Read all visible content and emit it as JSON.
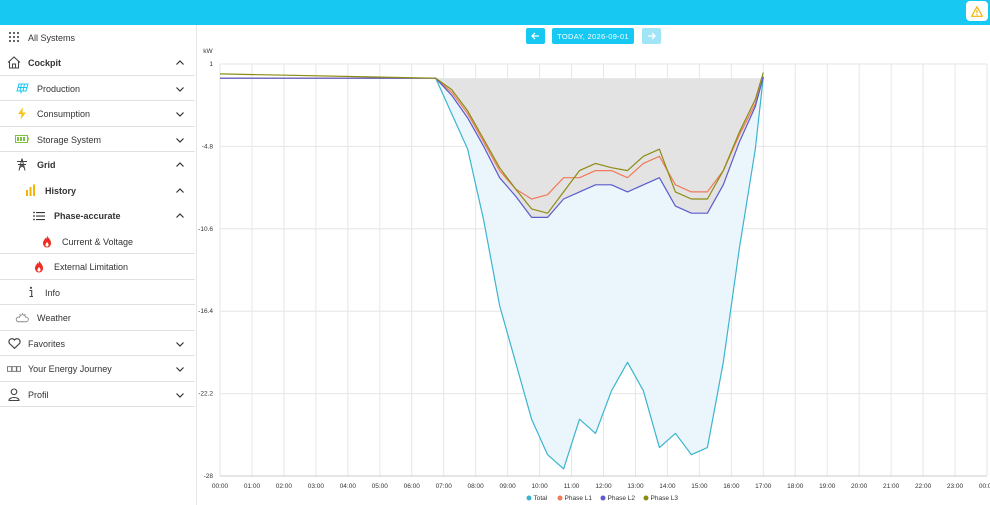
{
  "header": {
    "warning_icon": "warning-icon",
    "accent_color": "#17c8f3"
  },
  "date_nav": {
    "label": "TODAY, 2026-09-01",
    "prev_icon": "arrow-left-icon",
    "next_icon": "arrow-right-icon"
  },
  "sidebar": {
    "items": [
      {
        "label": "All Systems",
        "icon": "grid-icon",
        "bold": false,
        "chevron": ""
      },
      {
        "label": "Cockpit",
        "icon": "home-icon",
        "bold": true,
        "chevron": "up"
      },
      {
        "label": "Production",
        "icon": "solar-panel-icon",
        "bold": false,
        "chevron": "down"
      },
      {
        "label": "Consumption",
        "icon": "lightning-icon",
        "bold": false,
        "chevron": "down"
      },
      {
        "label": "Storage System",
        "icon": "battery-icon",
        "bold": false,
        "chevron": "down"
      },
      {
        "label": "Grid",
        "icon": "power-tower-icon",
        "bold": true,
        "chevron": "up"
      },
      {
        "label": "History",
        "icon": "bar-chart-icon",
        "bold": true,
        "chevron": "up"
      },
      {
        "label": "Phase-accurate",
        "icon": "list-icon",
        "bold": true,
        "chevron": "up"
      },
      {
        "label": "Current & Voltage",
        "icon": "flame-icon",
        "bold": false,
        "chevron": ""
      },
      {
        "label": "External Limitation",
        "icon": "flame-icon",
        "bold": false,
        "chevron": ""
      },
      {
        "label": "Info",
        "icon": "info-icon",
        "bold": false,
        "chevron": ""
      },
      {
        "label": "Weather",
        "icon": "weather-icon",
        "bold": false,
        "chevron": ""
      },
      {
        "label": "Favorites",
        "icon": "heart-icon",
        "bold": false,
        "chevron": "down"
      },
      {
        "label": "Your Energy Journey",
        "icon": "journey-icon",
        "bold": false,
        "chevron": "down"
      },
      {
        "label": "Profil",
        "icon": "user-icon",
        "bold": false,
        "chevron": "down"
      }
    ]
  },
  "chart_data": {
    "type": "line",
    "ylabel": "kW",
    "ylim": [
      -28,
      1
    ],
    "yticks": [
      1,
      -4.8,
      -10.6,
      -16.4,
      -22.2,
      -28
    ],
    "xticks": [
      "00:00",
      "01:00",
      "02:00",
      "03:00",
      "04:00",
      "05:00",
      "06:00",
      "07:00",
      "08:00",
      "09:00",
      "10:00",
      "11:00",
      "12:00",
      "13:00",
      "14:00",
      "15:00",
      "16:00",
      "17:00",
      "18:00",
      "19:00",
      "20:00",
      "21:00",
      "22:00",
      "23:00",
      "00:00"
    ],
    "x": [
      "00:00",
      "06:45",
      "07:15",
      "07:45",
      "08:15",
      "08:45",
      "09:15",
      "09:45",
      "10:15",
      "10:45",
      "11:15",
      "11:45",
      "12:15",
      "12:45",
      "13:15",
      "13:45",
      "14:15",
      "14:45",
      "15:15",
      "15:45",
      "16:15",
      "16:45",
      "17:00"
    ],
    "series": [
      {
        "name": "Total",
        "color": "#3cb4cf",
        "area_fill": "#eaf6fb",
        "values": [
          0,
          0,
          -2.5,
          -5,
          -10,
          -16,
          -20,
          -24,
          -26.5,
          -27.5,
          -24,
          -25,
          -22,
          -20,
          -22,
          -26,
          -25,
          -26.5,
          -26,
          -20,
          -12,
          -5,
          0.1
        ]
      },
      {
        "name": "Phase L1",
        "color": "#f07b5a",
        "values": [
          0,
          0,
          -1,
          -2.5,
          -4.5,
          -6.5,
          -7.8,
          -8.5,
          -8.2,
          -7,
          -7,
          -6.5,
          -6.5,
          -7,
          -6,
          -5.5,
          -7.5,
          -8,
          -8,
          -6.5,
          -4,
          -1.8,
          0.1
        ]
      },
      {
        "name": "Phase L2",
        "color": "#5b5bcc",
        "area_fill": "#e3e3e3",
        "values": [
          0,
          0,
          -1.2,
          -2.8,
          -4.8,
          -7,
          -8.3,
          -9.8,
          -9.8,
          -8.5,
          -8,
          -7.5,
          -7.5,
          -8,
          -7.5,
          -7,
          -9,
          -9.5,
          -9.5,
          -7.5,
          -4.5,
          -2,
          0.1
        ]
      },
      {
        "name": "Phase L3",
        "color": "#8c8c14",
        "values": [
          0.3,
          0,
          -0.8,
          -2.3,
          -4.3,
          -6.3,
          -7.8,
          -9.2,
          -9.5,
          -8,
          -6.5,
          -6,
          -6.3,
          -6.5,
          -5.5,
          -5,
          -8,
          -8.5,
          -8.5,
          -6.5,
          -3.8,
          -1.5,
          0.4
        ]
      }
    ],
    "legend_position": "bottom-center",
    "grid": true
  }
}
